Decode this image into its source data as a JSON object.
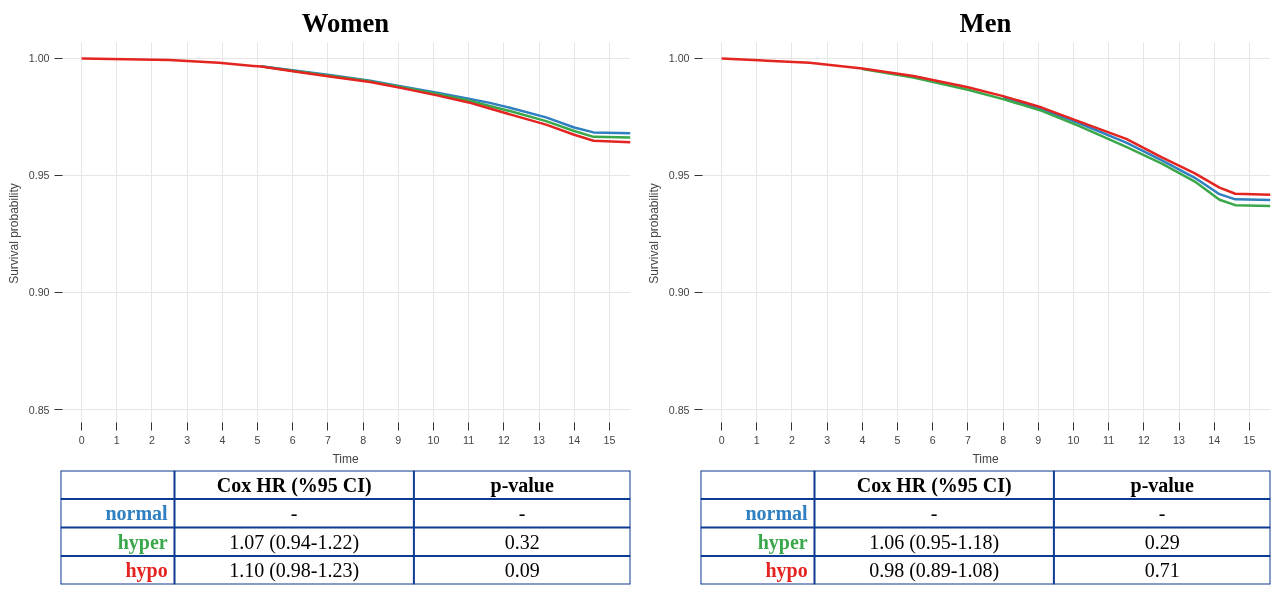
{
  "chart_data": [
    {
      "type": "line",
      "title": "Women",
      "xlabel": "Time",
      "ylabel": "Survival probability",
      "xlim": [
        -0.6,
        15.6
      ],
      "ylim": [
        0.8436,
        1.0068
      ],
      "xticks": [
        0,
        1,
        2,
        3,
        4,
        5,
        6,
        7,
        8,
        9,
        10,
        11,
        12,
        13,
        14,
        15
      ],
      "yticks": [
        {
          "value": 0.85,
          "label": "0.85"
        },
        {
          "value": 0.9,
          "label": "0.90"
        },
        {
          "value": 0.95,
          "label": "0.95"
        },
        {
          "value": 1.0,
          "label": "1.00"
        }
      ],
      "grid": true,
      "series": [
        {
          "name": "normal",
          "color": "#2f7fc1",
          "x": [
            5.1,
            6.1,
            7.1,
            8.2,
            9.1,
            10.1,
            11.0,
            11.6,
            12.2,
            13.2,
            14.0,
            14.55,
            15.6
          ],
          "values": [
            0.9967,
            0.9947,
            0.9928,
            0.9905,
            0.988,
            0.9853,
            0.9828,
            0.981,
            0.9788,
            0.9748,
            0.9705,
            0.9684,
            0.968
          ]
        },
        {
          "name": "hyper",
          "color": "#3aa84a",
          "x": [
            5.1,
            6.1,
            7.1,
            8.2,
            9.1,
            10.1,
            11.0,
            11.6,
            12.2,
            13.2,
            14.0,
            14.55,
            15.6
          ],
          "values": [
            0.9966,
            0.9945,
            0.9925,
            0.9902,
            0.9877,
            0.9848,
            0.982,
            0.9797,
            0.9774,
            0.9732,
            0.969,
            0.9665,
            0.9662
          ]
        },
        {
          "name": "hypo",
          "color": "#e32420",
          "x": [
            0,
            2.5,
            3.9,
            5.1,
            6.1,
            7.1,
            8.2,
            9.1,
            10.1,
            11.0,
            11.6,
            12.2,
            13.2,
            14.0,
            14.55,
            15.6
          ],
          "values": [
            1.0,
            0.9993,
            0.9981,
            0.9965,
            0.9943,
            0.9922,
            0.9899,
            0.9873,
            0.9842,
            0.9812,
            0.9786,
            0.976,
            0.9717,
            0.9674,
            0.9648,
            0.9642
          ]
        }
      ],
      "annotations": [
        "Cox HR (%95 CI)",
        "p-value",
        "-",
        "-",
        "1.07 (0.94-1.22)",
        "0.32",
        "1.10 (0.98-1.23)",
        "0.09"
      ]
    },
    {
      "type": "line",
      "title": "Men",
      "xlabel": "Time",
      "ylabel": "Survival probability",
      "xlim": [
        -0.6,
        15.6
      ],
      "ylim": [
        0.8436,
        1.0068
      ],
      "xticks": [
        0,
        1,
        2,
        3,
        4,
        5,
        6,
        7,
        8,
        9,
        10,
        11,
        12,
        13,
        14,
        15
      ],
      "yticks": [
        {
          "value": 0.85,
          "label": "0.85"
        },
        {
          "value": 0.9,
          "label": "0.90"
        },
        {
          "value": 0.95,
          "label": "0.95"
        },
        {
          "value": 1.0,
          "label": "1.00"
        }
      ],
      "grid": true,
      "series": [
        {
          "name": "normal",
          "color": "#2f7fc1",
          "x": [
            8.0,
            9.1,
            10.15,
            11.5,
            12.5,
            13.45,
            14.15,
            14.6,
            15.6
          ],
          "values": [
            0.9833,
            0.9784,
            0.9724,
            0.964,
            0.9565,
            0.949,
            0.942,
            0.9398,
            0.9395
          ]
        },
        {
          "name": "hyper",
          "color": "#3aa84a",
          "x": [
            4.0,
            5.45,
            7.0,
            8.0,
            9.1,
            10.15,
            11.5,
            12.5,
            13.45,
            14.15,
            14.6,
            15.6
          ],
          "values": [
            0.9955,
            0.9918,
            0.9866,
            0.9826,
            0.9776,
            0.9712,
            0.9622,
            0.9552,
            0.9474,
            0.9396,
            0.9373,
            0.937
          ]
        },
        {
          "name": "hypo",
          "color": "#e32420",
          "x": [
            0,
            2.5,
            4.0,
            5.45,
            7.0,
            8.0,
            9.1,
            10.15,
            11.5,
            12.5,
            13.45,
            14.15,
            14.6,
            15.6
          ],
          "values": [
            1.0,
            0.9981,
            0.9957,
            0.9925,
            0.9877,
            0.9839,
            0.979,
            0.9731,
            0.9656,
            0.9578,
            0.9509,
            0.9448,
            0.9422,
            0.9418
          ]
        }
      ],
      "annotations": [
        "Cox HR (%95 CI)",
        "p-value",
        "-",
        "-",
        "1.06 (0.95-1.18)",
        "0.29",
        "0.98 (0.89-1.08)",
        "0.71"
      ]
    }
  ]
}
